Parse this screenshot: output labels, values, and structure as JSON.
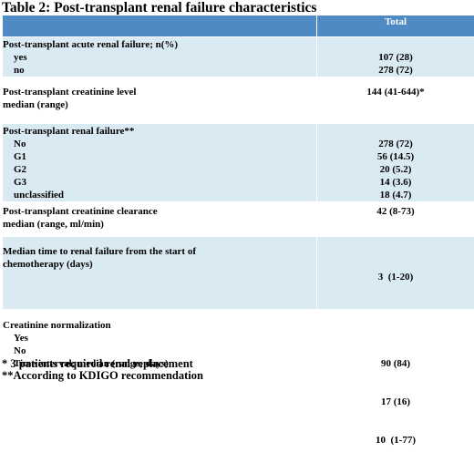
{
  "title": "Table 2: Post-transplant renal failure characteristics",
  "table": {
    "header_total": "Total",
    "sections": [
      {
        "label": "Post-transplant acute renal failure; n(%)",
        "rows": [
          {
            "label": "yes",
            "value": "107 (28)"
          },
          {
            "label": "no",
            "value": "278 (72)"
          }
        ]
      },
      {
        "label_lines": [
          "Post-transplant creatinine level",
          "median (range)"
        ],
        "value": "144 (41-644)*"
      },
      {
        "label": "Post-transplant renal failure**",
        "rows": [
          {
            "label": "No",
            "value": "278 (72)"
          },
          {
            "label": "G1",
            "value": "56 (14.5)"
          },
          {
            "label": "G2",
            "value": "20 (5.2)"
          },
          {
            "label": "G3",
            "value": "14 (3.6)"
          },
          {
            "label": "unclassified",
            "value": "18 (4.7)"
          }
        ]
      },
      {
        "label_lines": [
          "Post-transplant creatinine clearance",
          "median (range, ml/min)"
        ],
        "value": "42 (8-73)"
      },
      {
        "label_lines": [
          "Median time to renal failure from the start of",
          "chemotherapy (days)"
        ],
        "value": "3  (1-20)"
      },
      {
        "label": "Creatinine normalization",
        "rows": [
          {
            "label": "Yes",
            "value": "90 (84)"
          },
          {
            "label": "No",
            "value": "17 (16)"
          },
          {
            "label": "Time interval; median (range; days)",
            "value": "10  (1-77)"
          }
        ]
      }
    ]
  },
  "footnotes": [
    "* 3 patients required renal replacement",
    "**According to KDIGO recommendation"
  ],
  "colors": {
    "header_bg": "#4e8ac4",
    "shaded_row_bg": "#daeaf3",
    "plain_row_bg": "#ffffff"
  }
}
